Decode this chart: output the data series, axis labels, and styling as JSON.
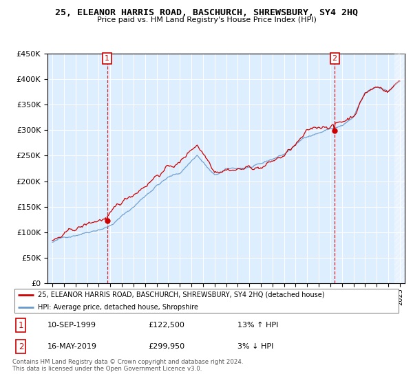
{
  "title": "25, ELEANOR HARRIS ROAD, BASCHURCH, SHREWSBURY, SY4 2HQ",
  "subtitle": "Price paid vs. HM Land Registry's House Price Index (HPI)",
  "legend_line1": "25, ELEANOR HARRIS ROAD, BASCHURCH, SHREWSBURY, SY4 2HQ (detached house)",
  "legend_line2": "HPI: Average price, detached house, Shropshire",
  "annotation1_date": "10-SEP-1999",
  "annotation1_price": "£122,500",
  "annotation1_hpi": "13% ↑ HPI",
  "annotation2_date": "16-MAY-2019",
  "annotation2_price": "£299,950",
  "annotation2_hpi": "3% ↓ HPI",
  "footer": "Contains HM Land Registry data © Crown copyright and database right 2024.\nThis data is licensed under the Open Government Licence v3.0.",
  "red_color": "#cc0000",
  "blue_color": "#6699cc",
  "bg_color": "#ddeeff",
  "ylim_min": 0,
  "ylim_max": 450000,
  "sale1_year": 1999.72,
  "sale1_value": 122500,
  "sale2_year": 2019.37,
  "sale2_value": 299950
}
